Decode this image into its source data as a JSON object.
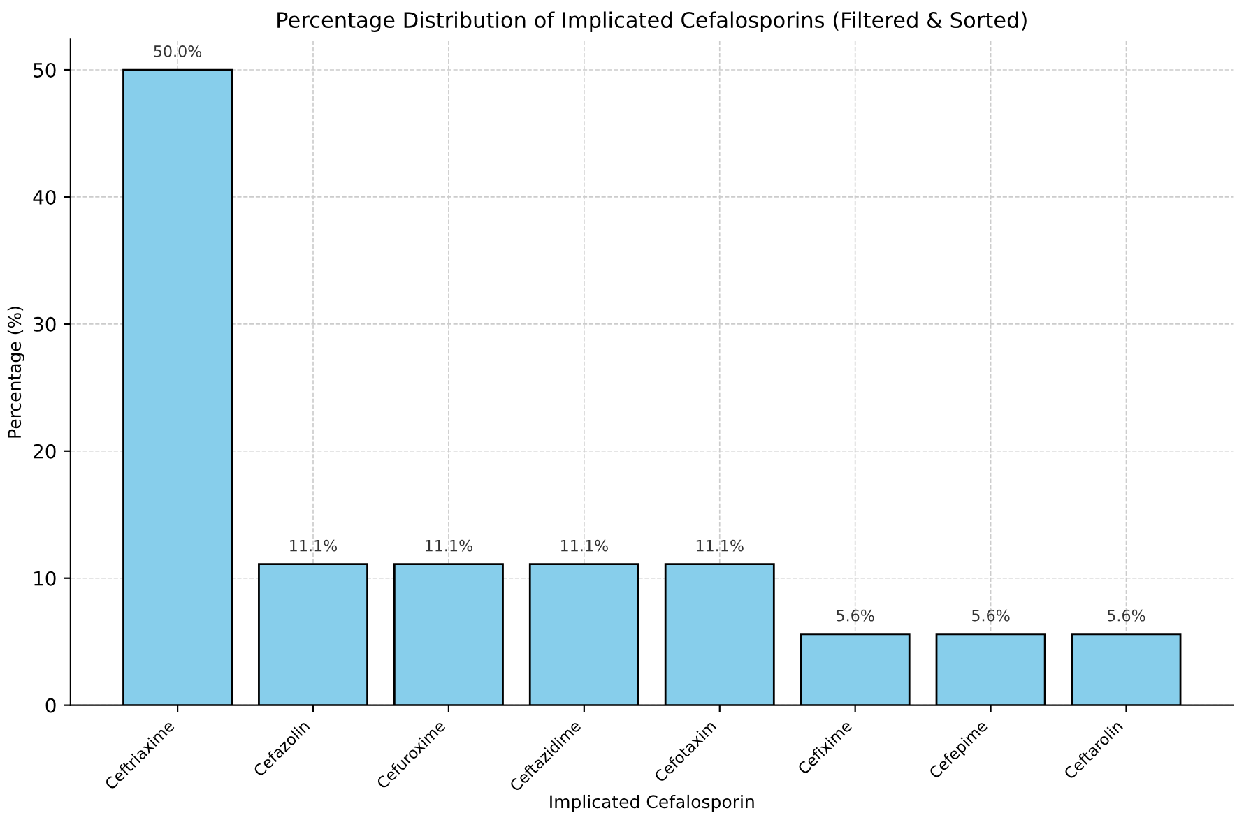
{
  "chart_data": {
    "type": "bar",
    "title": "Percentage Distribution of Implicated Cefalosporins (Filtered & Sorted)",
    "xlabel": "Implicated Cefalosporin",
    "ylabel": "Percentage (%)",
    "categories": [
      "Ceftriaxime",
      "Cefazolin",
      "Cefuroxime",
      "Ceftazidime",
      "Cefotaxim",
      "Cefixime",
      "Cefepime",
      "Ceftarolin"
    ],
    "values": [
      50.0,
      11.1,
      11.1,
      11.1,
      11.1,
      5.6,
      5.6,
      5.6
    ],
    "value_labels": [
      "50.0%",
      "11.1%",
      "11.1%",
      "11.1%",
      "11.1%",
      "5.6%",
      "5.6%",
      "5.6%"
    ],
    "color": "#87ceeb",
    "ylim": [
      0,
      52.4
    ],
    "yticks": [
      0,
      10,
      20,
      30,
      40,
      50
    ],
    "grid": true,
    "legend": false
  }
}
